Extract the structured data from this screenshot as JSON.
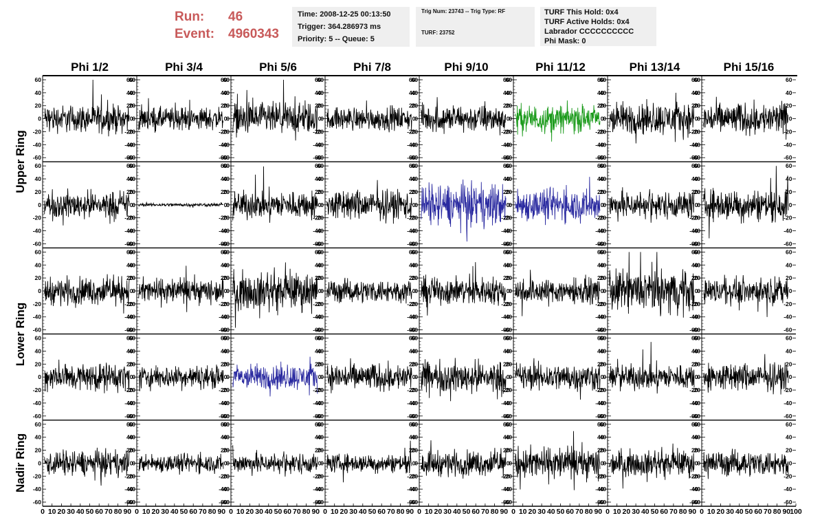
{
  "header": {
    "run_label": "Run:",
    "run_value": "46",
    "event_label": "Event:",
    "event_value": "4960343",
    "time": "Time: 2008-12-25 00:13:50",
    "trigger": "Trigger: 364.286973 ms",
    "priority": "Priority: 5 -- Queue: 5",
    "trig_num": "Trig Num: 23743 -- Trig Type: RF",
    "turf": "TURF: 23752",
    "turf_this_hold": "TURF This Hold: 0x4",
    "turf_active_holds": "TURF Active Holds: 0x4",
    "labrador": "Labrador CCCCCCCCCC",
    "phi_mask": "Phi Mask: 0"
  },
  "columns": [
    "Phi 1/2",
    "Phi 3/4",
    "Phi 5/6",
    "Phi 7/8",
    "Phi 9/10",
    "Phi 11/12",
    "Phi 13/14",
    "Phi 15/16"
  ],
  "row_labels": [
    {
      "text": "Upper Ring",
      "rows": [
        0,
        1
      ]
    },
    {
      "text": "Lower Ring",
      "rows": [
        2,
        3
      ]
    },
    {
      "text": "Nadir Ring",
      "rows": [
        4,
        4
      ]
    }
  ],
  "chart_data": {
    "type": "line",
    "layout": "5 rows x 8 columns of waveform panels",
    "ylim": [
      -60,
      60
    ],
    "xlim": [
      0,
      100
    ],
    "y_ticks": [
      -60,
      -40,
      -20,
      0,
      20,
      40,
      60
    ],
    "x_ticks": [
      0,
      10,
      20,
      30,
      40,
      50,
      60,
      70,
      80,
      90,
      100
    ],
    "samples": 260,
    "x_end": 92,
    "colors": {
      "default": "#000000",
      "green": "#1a9a1a",
      "blue": "#2a2aa0"
    },
    "panels": [
      [
        {
          "amp": 12,
          "color": "default"
        },
        {
          "amp": 10,
          "color": "default"
        },
        {
          "amp": 14,
          "color": "default"
        },
        {
          "amp": 10,
          "color": "default"
        },
        {
          "amp": 12,
          "color": "default"
        },
        {
          "amp": 12,
          "color": "green"
        },
        {
          "amp": 14,
          "color": "default"
        },
        {
          "amp": 14,
          "color": "default"
        }
      ],
      [
        {
          "amp": 12,
          "color": "default"
        },
        {
          "amp": 1.5,
          "color": "default"
        },
        {
          "amp": 12,
          "color": "default"
        },
        {
          "amp": 13,
          "color": "default"
        },
        {
          "amp": 18,
          "color": "blue"
        },
        {
          "amp": 14,
          "color": "blue"
        },
        {
          "amp": 12,
          "color": "default"
        },
        {
          "amp": 14,
          "color": "default"
        }
      ],
      [
        {
          "amp": 12,
          "color": "default"
        },
        {
          "amp": 11,
          "color": "default"
        },
        {
          "amp": 16,
          "color": "default"
        },
        {
          "amp": 10,
          "color": "default"
        },
        {
          "amp": 12,
          "color": "default"
        },
        {
          "amp": 11,
          "color": "default"
        },
        {
          "amp": 18,
          "color": "default"
        },
        {
          "amp": 11,
          "color": "default"
        }
      ],
      [
        {
          "amp": 12,
          "color": "default"
        },
        {
          "amp": 10,
          "color": "default"
        },
        {
          "amp": 11,
          "color": "blue"
        },
        {
          "amp": 12,
          "color": "default"
        },
        {
          "amp": 14,
          "color": "default"
        },
        {
          "amp": 12,
          "color": "default"
        },
        {
          "amp": 11,
          "color": "default"
        },
        {
          "amp": 12,
          "color": "default"
        }
      ],
      [
        {
          "amp": 11,
          "color": "default"
        },
        {
          "amp": 8,
          "color": "default"
        },
        {
          "amp": 9,
          "color": "default"
        },
        {
          "amp": 8,
          "color": "default"
        },
        {
          "amp": 11,
          "color": "default"
        },
        {
          "amp": 14,
          "color": "default"
        },
        {
          "amp": 11,
          "color": "default"
        },
        {
          "amp": 11,
          "color": "default"
        }
      ]
    ]
  }
}
